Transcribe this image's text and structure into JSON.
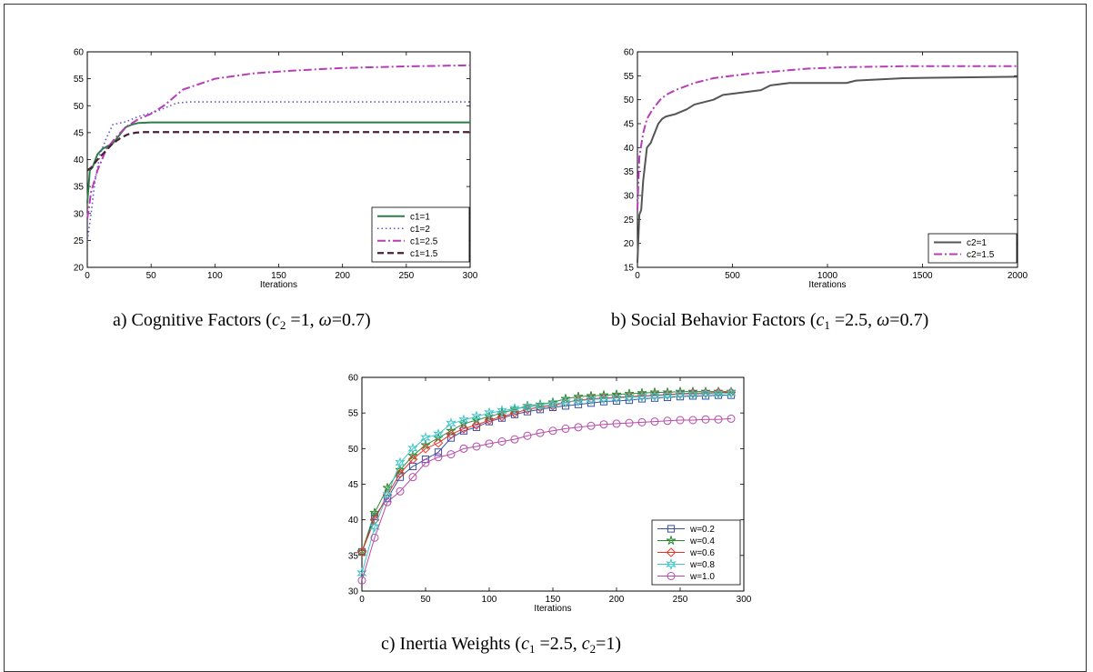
{
  "captions": {
    "a": {
      "pre": "a) Cognitive Factors (",
      "v1": "c",
      "s1": "2",
      "mid1": " =1, ",
      "v2": "ω",
      "post": "=0.7)"
    },
    "b": {
      "pre": "b) Social Behavior Factors (",
      "v1": "c",
      "s1": "1",
      "mid1": " =2.5, ",
      "v2": "ω",
      "post": "=0.7)"
    },
    "c": {
      "pre": "c) Inertia Weights (",
      "v1": "c",
      "s1": "1",
      "mid1": " =2.5, ",
      "v2": "c",
      "s2": "2",
      "post": "=1)"
    }
  },
  "chart_data": [
    {
      "type": "line",
      "xlabel": "Iterations",
      "ylabel": "",
      "xlim": [
        0,
        300
      ],
      "ylim": [
        20,
        60
      ],
      "xticks": [
        0,
        50,
        100,
        150,
        200,
        250,
        300
      ],
      "yticks": [
        20,
        25,
        30,
        35,
        40,
        45,
        50,
        55,
        60
      ],
      "legend": "bottom-right",
      "series": [
        {
          "name": "c1=1",
          "color": "#2e7d46",
          "dash": "solid",
          "width": 2,
          "x": [
            0,
            2,
            4,
            8,
            12,
            16,
            20,
            25,
            30,
            35,
            40,
            50,
            300
          ],
          "y": [
            32,
            38,
            38.5,
            41,
            42,
            42.5,
            43,
            44.5,
            46,
            46.5,
            46.8,
            46.9,
            46.9
          ]
        },
        {
          "name": "c1=2",
          "color": "#5a5acf",
          "dash": "dot",
          "width": 1.6,
          "x": [
            0,
            3,
            6,
            10,
            15,
            20,
            30,
            40,
            55,
            70,
            80,
            300
          ],
          "y": [
            25,
            30,
            36,
            41,
            44,
            46.5,
            47,
            48,
            49,
            50.5,
            50.7,
            50.7
          ]
        },
        {
          "name": "c1=2.5",
          "color": "#b83cb8",
          "dash": "dashdot",
          "width": 2,
          "x": [
            0,
            3,
            8,
            15,
            22,
            30,
            40,
            50,
            60,
            75,
            100,
            130,
            160,
            200,
            250,
            300
          ],
          "y": [
            29,
            34,
            38,
            42,
            44,
            46,
            47.5,
            48.5,
            50,
            53,
            55,
            56,
            56.5,
            57,
            57.3,
            57.5
          ]
        },
        {
          "name": "c1=1.5",
          "color": "#4a2038",
          "dash": "dash",
          "width": 2.2,
          "x": [
            0,
            3,
            8,
            14,
            20,
            26,
            32,
            38,
            45,
            300
          ],
          "y": [
            38,
            38.5,
            40,
            41.5,
            43,
            44,
            44.7,
            45,
            45.1,
            45.1
          ]
        }
      ]
    },
    {
      "type": "line",
      "xlabel": "Iterations",
      "ylabel": "",
      "xlim": [
        0,
        2000
      ],
      "ylim": [
        15,
        60
      ],
      "xticks": [
        0,
        500,
        1000,
        1500,
        2000
      ],
      "yticks": [
        15,
        20,
        25,
        30,
        35,
        40,
        45,
        50,
        55,
        60
      ],
      "legend": "bottom-right",
      "series": [
        {
          "name": "c2=1",
          "color": "#555555",
          "dash": "solid",
          "width": 2,
          "x": [
            0,
            10,
            20,
            30,
            50,
            70,
            90,
            110,
            130,
            150,
            200,
            260,
            300,
            350,
            400,
            450,
            550,
            650,
            700,
            800,
            1000,
            1100,
            1150,
            1400,
            1800,
            2000
          ],
          "y": [
            16,
            26,
            27,
            33,
            40,
            41,
            43,
            45,
            46,
            46.5,
            47,
            48,
            49,
            49.5,
            50,
            51,
            51.5,
            52,
            53,
            53.5,
            53.5,
            53.5,
            54,
            54.5,
            54.7,
            54.8
          ]
        },
        {
          "name": "c2=1.5",
          "color": "#b83cb8",
          "dash": "dashdot",
          "width": 2,
          "x": [
            0,
            10,
            30,
            50,
            80,
            120,
            150,
            200,
            300,
            400,
            600,
            900,
            1100,
            1400,
            2000
          ],
          "y": [
            27,
            38,
            43,
            46,
            48,
            50,
            51,
            52,
            53.5,
            54.5,
            55.5,
            56.5,
            56.8,
            57,
            57
          ]
        }
      ]
    },
    {
      "type": "line",
      "xlabel": "Iterations",
      "ylabel": "",
      "xlim": [
        0,
        300
      ],
      "ylim": [
        30,
        60
      ],
      "xticks": [
        0,
        50,
        100,
        150,
        200,
        250,
        300
      ],
      "yticks": [
        30,
        35,
        40,
        45,
        50,
        55,
        60
      ],
      "legend": "bottom-right",
      "series": [
        {
          "name": "w=0.2",
          "color": "#3a4fa8",
          "marker": "square",
          "x": [
            0,
            10,
            20,
            30,
            40,
            50,
            60,
            70,
            80,
            90,
            100,
            110,
            120,
            130,
            140,
            150,
            160,
            170,
            180,
            190,
            200,
            210,
            220,
            230,
            240,
            250,
            260,
            270,
            280,
            290
          ],
          "y": [
            35.5,
            40.5,
            43,
            46,
            47.5,
            48.5,
            49.5,
            51.5,
            52.5,
            53,
            53.8,
            54.3,
            54.8,
            55.2,
            55.5,
            55.8,
            56,
            56.2,
            56.4,
            56.6,
            56.7,
            56.8,
            57,
            57.1,
            57.2,
            57.3,
            57.4,
            57.4,
            57.5,
            57.5
          ]
        },
        {
          "name": "w=0.4",
          "color": "#2f8a2f",
          "marker": "star",
          "x": [
            0,
            10,
            20,
            30,
            40,
            50,
            60,
            70,
            80,
            90,
            100,
            110,
            120,
            130,
            140,
            150,
            160,
            170,
            180,
            190,
            200,
            210,
            220,
            230,
            240,
            250,
            260,
            270,
            280,
            290
          ],
          "y": [
            35.5,
            41,
            44.5,
            47,
            49,
            50.5,
            51.5,
            52.5,
            53.5,
            54,
            54.5,
            55,
            55.5,
            56,
            56.2,
            56.5,
            57,
            57.3,
            57.4,
            57.5,
            57.6,
            57.7,
            57.8,
            57.9,
            57.9,
            58,
            58,
            58,
            58,
            58
          ]
        },
        {
          "name": "w=0.6",
          "color": "#e8352a",
          "marker": "diamond",
          "x": [
            0,
            10,
            20,
            30,
            40,
            50,
            60,
            70,
            80,
            90,
            100,
            110,
            120,
            130,
            140,
            150,
            160,
            170,
            180,
            190,
            200,
            210,
            220,
            230,
            240,
            250,
            260,
            270,
            280,
            290
          ],
          "y": [
            35.5,
            40,
            43.5,
            46.5,
            48.5,
            50,
            50.8,
            52,
            52.8,
            53.3,
            54,
            54.5,
            55,
            55.5,
            55.8,
            56,
            56.5,
            56.8,
            57,
            57.1,
            57.2,
            57.3,
            57.4,
            57.5,
            57.6,
            57.7,
            57.8,
            57.8,
            57.9,
            57.9
          ]
        },
        {
          "name": "w=0.8",
          "color": "#3fc4c8",
          "marker": "hexagram",
          "x": [
            0,
            10,
            20,
            30,
            40,
            50,
            60,
            70,
            80,
            90,
            100,
            110,
            120,
            130,
            140,
            150,
            160,
            170,
            180,
            190,
            200,
            210,
            220,
            230,
            240,
            250,
            260,
            270,
            280,
            290
          ],
          "y": [
            32.5,
            39,
            43.5,
            48,
            50,
            51.5,
            52,
            53.5,
            54,
            54.5,
            55,
            55.3,
            55.6,
            55.8,
            56,
            56.2,
            56.5,
            56.7,
            56.9,
            57,
            57.1,
            57.2,
            57.3,
            57.4,
            57.5,
            57.6,
            57.6,
            57.7,
            57.7,
            57.8
          ]
        },
        {
          "name": "w=1.0",
          "color": "#b84aa8",
          "marker": "circle",
          "x": [
            0,
            10,
            20,
            30,
            40,
            50,
            60,
            70,
            80,
            90,
            100,
            110,
            120,
            130,
            140,
            150,
            160,
            170,
            180,
            190,
            200,
            210,
            220,
            230,
            240,
            250,
            260,
            270,
            280,
            290
          ],
          "y": [
            31.5,
            37.5,
            42.5,
            44,
            46,
            48,
            48.8,
            49.2,
            50,
            50.3,
            50.7,
            51,
            51.3,
            51.8,
            52.2,
            52.5,
            52.8,
            53,
            53.2,
            53.4,
            53.5,
            53.6,
            53.7,
            53.8,
            53.9,
            54,
            54,
            54.1,
            54.1,
            54.2
          ]
        }
      ]
    }
  ]
}
